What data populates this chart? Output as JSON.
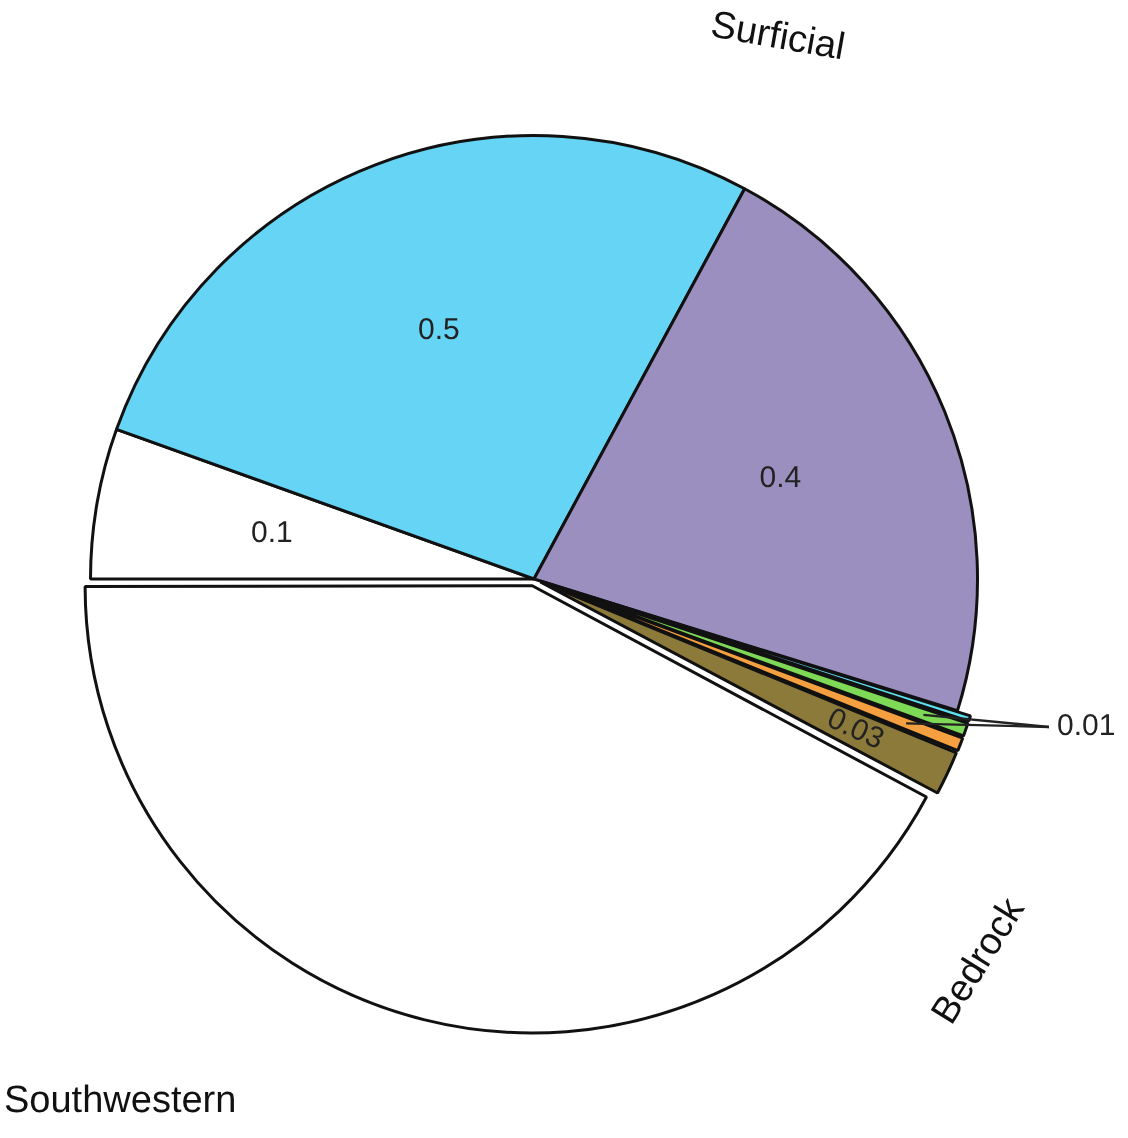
{
  "chart_data": {
    "type": "pie",
    "categories": [
      null,
      null,
      null,
      null,
      null,
      null,
      null,
      null
    ],
    "values": [
      0.1,
      0.5,
      0.4,
      0.005,
      0.01,
      0.01,
      0.03,
      0.77
    ],
    "colors": [
      "#ffffff",
      "#66d4f5",
      "#9b8fc0",
      "#5ee0f0",
      "#7ed957",
      "#f5a040",
      "#8b7a3a",
      "#ffffff"
    ],
    "value_labels": [
      "0.1",
      "0.5",
      "0.4",
      null,
      "0.01",
      null,
      "0.03",
      null
    ],
    "annotations": [
      "Surficial",
      "Bedrock",
      "Southwestern"
    ],
    "legend": false
  }
}
